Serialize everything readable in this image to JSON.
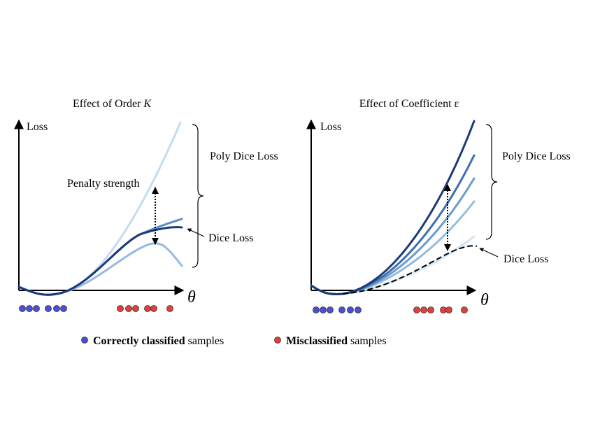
{
  "panels": [
    {
      "title": "Effect of Order",
      "title_symbol": "K",
      "y_label": "Loss",
      "x_label": "θ",
      "poly_label": "Poly Dice Loss",
      "penalty_label": "Penalty strength",
      "dice_label": "Dice Loss"
    },
    {
      "title": "Effect of Coefficient ε",
      "y_label": "Loss",
      "x_label": "θ",
      "poly_label": "Poly Dice Loss",
      "dice_label": "Dice Loss"
    }
  ],
  "legend": [
    {
      "bold": "Correctly classified",
      "rest": "samples",
      "color": "#4a4fd6"
    },
    {
      "bold": "Misclassified",
      "rest": "samples",
      "color": "#e0403a"
    }
  ]
}
